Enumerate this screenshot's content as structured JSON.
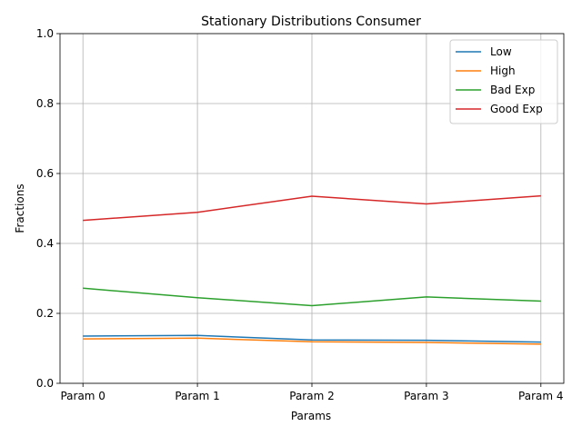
{
  "chart_data": {
    "type": "line",
    "title": "Stationary Distributions Consumer",
    "xlabel": "Params",
    "ylabel": "Fractions",
    "categories": [
      "Param 0",
      "Param 1",
      "Param 2",
      "Param 3",
      "Param 4"
    ],
    "ylim": [
      0,
      1.0
    ],
    "yticks": [
      "0.0",
      "0.2",
      "0.4",
      "0.6",
      "0.8",
      "1.0"
    ],
    "grid": true,
    "legend_position": "top-right",
    "series": [
      {
        "name": "Low",
        "color": "#1f77b4",
        "values": [
          0.135,
          0.137,
          0.124,
          0.123,
          0.118
        ]
      },
      {
        "name": "High",
        "color": "#ff7f0e",
        "values": [
          0.127,
          0.129,
          0.119,
          0.117,
          0.112
        ]
      },
      {
        "name": "Bad Exp",
        "color": "#2ca02c",
        "values": [
          0.272,
          0.245,
          0.222,
          0.247,
          0.235
        ]
      },
      {
        "name": "Good Exp",
        "color": "#d62728",
        "values": [
          0.466,
          0.489,
          0.535,
          0.513,
          0.536
        ]
      }
    ]
  }
}
